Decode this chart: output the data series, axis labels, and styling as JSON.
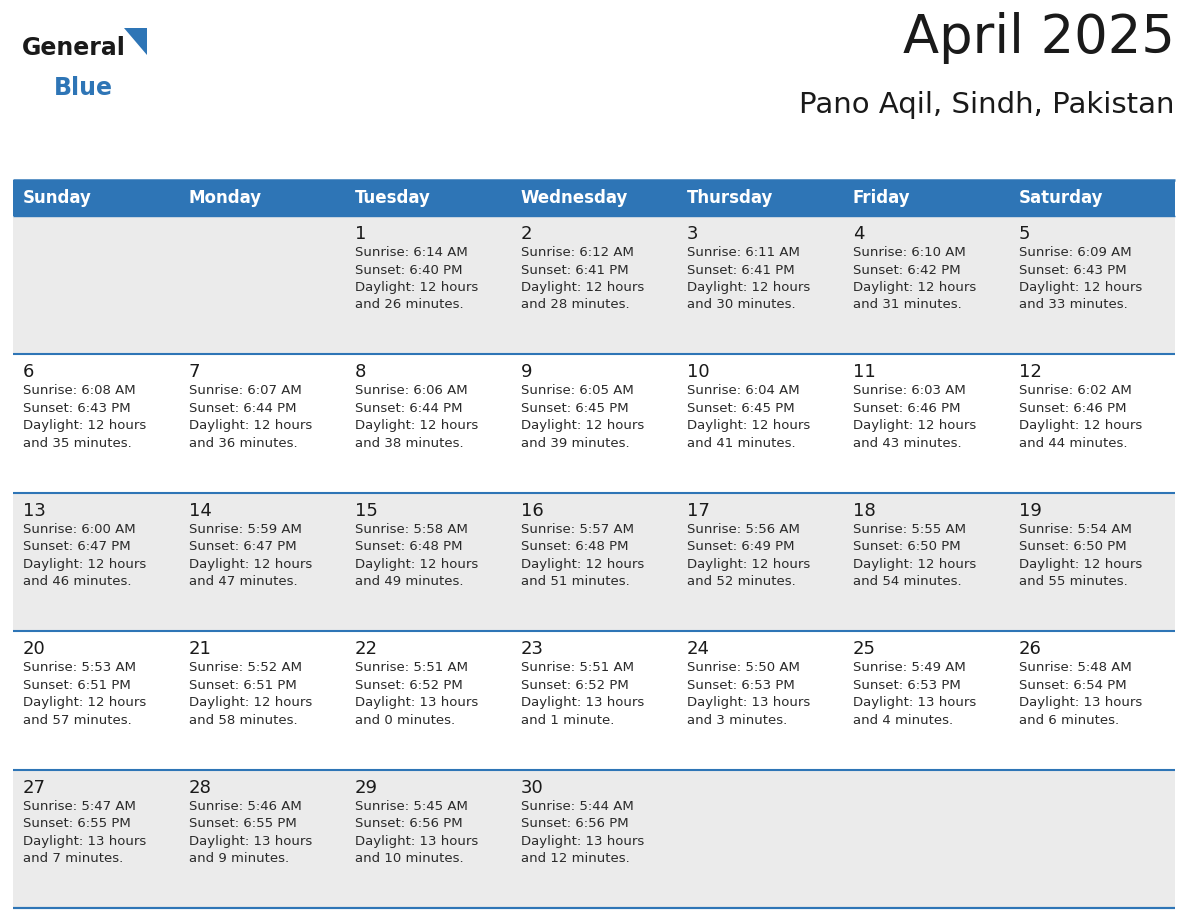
{
  "title": "April 2025",
  "subtitle": "Pano Aqil, Sindh, Pakistan",
  "header_bg": "#2E75B6",
  "header_text_color": "#FFFFFF",
  "cell_bg_odd": "#EBEBEB",
  "cell_bg_even": "#FFFFFF",
  "day_number_color": "#1a1a1a",
  "text_color": "#2a2a2a",
  "line_color": "#2E75B6",
  "days_of_week": [
    "Sunday",
    "Monday",
    "Tuesday",
    "Wednesday",
    "Thursday",
    "Friday",
    "Saturday"
  ],
  "calendar": [
    [
      {
        "day": "",
        "info": ""
      },
      {
        "day": "",
        "info": ""
      },
      {
        "day": "1",
        "info": "Sunrise: 6:14 AM\nSunset: 6:40 PM\nDaylight: 12 hours\nand 26 minutes."
      },
      {
        "day": "2",
        "info": "Sunrise: 6:12 AM\nSunset: 6:41 PM\nDaylight: 12 hours\nand 28 minutes."
      },
      {
        "day": "3",
        "info": "Sunrise: 6:11 AM\nSunset: 6:41 PM\nDaylight: 12 hours\nand 30 minutes."
      },
      {
        "day": "4",
        "info": "Sunrise: 6:10 AM\nSunset: 6:42 PM\nDaylight: 12 hours\nand 31 minutes."
      },
      {
        "day": "5",
        "info": "Sunrise: 6:09 AM\nSunset: 6:43 PM\nDaylight: 12 hours\nand 33 minutes."
      }
    ],
    [
      {
        "day": "6",
        "info": "Sunrise: 6:08 AM\nSunset: 6:43 PM\nDaylight: 12 hours\nand 35 minutes."
      },
      {
        "day": "7",
        "info": "Sunrise: 6:07 AM\nSunset: 6:44 PM\nDaylight: 12 hours\nand 36 minutes."
      },
      {
        "day": "8",
        "info": "Sunrise: 6:06 AM\nSunset: 6:44 PM\nDaylight: 12 hours\nand 38 minutes."
      },
      {
        "day": "9",
        "info": "Sunrise: 6:05 AM\nSunset: 6:45 PM\nDaylight: 12 hours\nand 39 minutes."
      },
      {
        "day": "10",
        "info": "Sunrise: 6:04 AM\nSunset: 6:45 PM\nDaylight: 12 hours\nand 41 minutes."
      },
      {
        "day": "11",
        "info": "Sunrise: 6:03 AM\nSunset: 6:46 PM\nDaylight: 12 hours\nand 43 minutes."
      },
      {
        "day": "12",
        "info": "Sunrise: 6:02 AM\nSunset: 6:46 PM\nDaylight: 12 hours\nand 44 minutes."
      }
    ],
    [
      {
        "day": "13",
        "info": "Sunrise: 6:00 AM\nSunset: 6:47 PM\nDaylight: 12 hours\nand 46 minutes."
      },
      {
        "day": "14",
        "info": "Sunrise: 5:59 AM\nSunset: 6:47 PM\nDaylight: 12 hours\nand 47 minutes."
      },
      {
        "day": "15",
        "info": "Sunrise: 5:58 AM\nSunset: 6:48 PM\nDaylight: 12 hours\nand 49 minutes."
      },
      {
        "day": "16",
        "info": "Sunrise: 5:57 AM\nSunset: 6:48 PM\nDaylight: 12 hours\nand 51 minutes."
      },
      {
        "day": "17",
        "info": "Sunrise: 5:56 AM\nSunset: 6:49 PM\nDaylight: 12 hours\nand 52 minutes."
      },
      {
        "day": "18",
        "info": "Sunrise: 5:55 AM\nSunset: 6:50 PM\nDaylight: 12 hours\nand 54 minutes."
      },
      {
        "day": "19",
        "info": "Sunrise: 5:54 AM\nSunset: 6:50 PM\nDaylight: 12 hours\nand 55 minutes."
      }
    ],
    [
      {
        "day": "20",
        "info": "Sunrise: 5:53 AM\nSunset: 6:51 PM\nDaylight: 12 hours\nand 57 minutes."
      },
      {
        "day": "21",
        "info": "Sunrise: 5:52 AM\nSunset: 6:51 PM\nDaylight: 12 hours\nand 58 minutes."
      },
      {
        "day": "22",
        "info": "Sunrise: 5:51 AM\nSunset: 6:52 PM\nDaylight: 13 hours\nand 0 minutes."
      },
      {
        "day": "23",
        "info": "Sunrise: 5:51 AM\nSunset: 6:52 PM\nDaylight: 13 hours\nand 1 minute."
      },
      {
        "day": "24",
        "info": "Sunrise: 5:50 AM\nSunset: 6:53 PM\nDaylight: 13 hours\nand 3 minutes."
      },
      {
        "day": "25",
        "info": "Sunrise: 5:49 AM\nSunset: 6:53 PM\nDaylight: 13 hours\nand 4 minutes."
      },
      {
        "day": "26",
        "info": "Sunrise: 5:48 AM\nSunset: 6:54 PM\nDaylight: 13 hours\nand 6 minutes."
      }
    ],
    [
      {
        "day": "27",
        "info": "Sunrise: 5:47 AM\nSunset: 6:55 PM\nDaylight: 13 hours\nand 7 minutes."
      },
      {
        "day": "28",
        "info": "Sunrise: 5:46 AM\nSunset: 6:55 PM\nDaylight: 13 hours\nand 9 minutes."
      },
      {
        "day": "29",
        "info": "Sunrise: 5:45 AM\nSunset: 6:56 PM\nDaylight: 13 hours\nand 10 minutes."
      },
      {
        "day": "30",
        "info": "Sunrise: 5:44 AM\nSunset: 6:56 PM\nDaylight: 13 hours\nand 12 minutes."
      },
      {
        "day": "",
        "info": ""
      },
      {
        "day": "",
        "info": ""
      },
      {
        "day": "",
        "info": ""
      }
    ]
  ],
  "logo_color_general": "#1a1a1a",
  "logo_color_blue": "#2E75B6",
  "logo_triangle_color": "#2E75B6",
  "title_fontsize": 38,
  "subtitle_fontsize": 21,
  "header_fontsize": 12,
  "day_number_fontsize": 13,
  "info_fontsize": 9.5
}
